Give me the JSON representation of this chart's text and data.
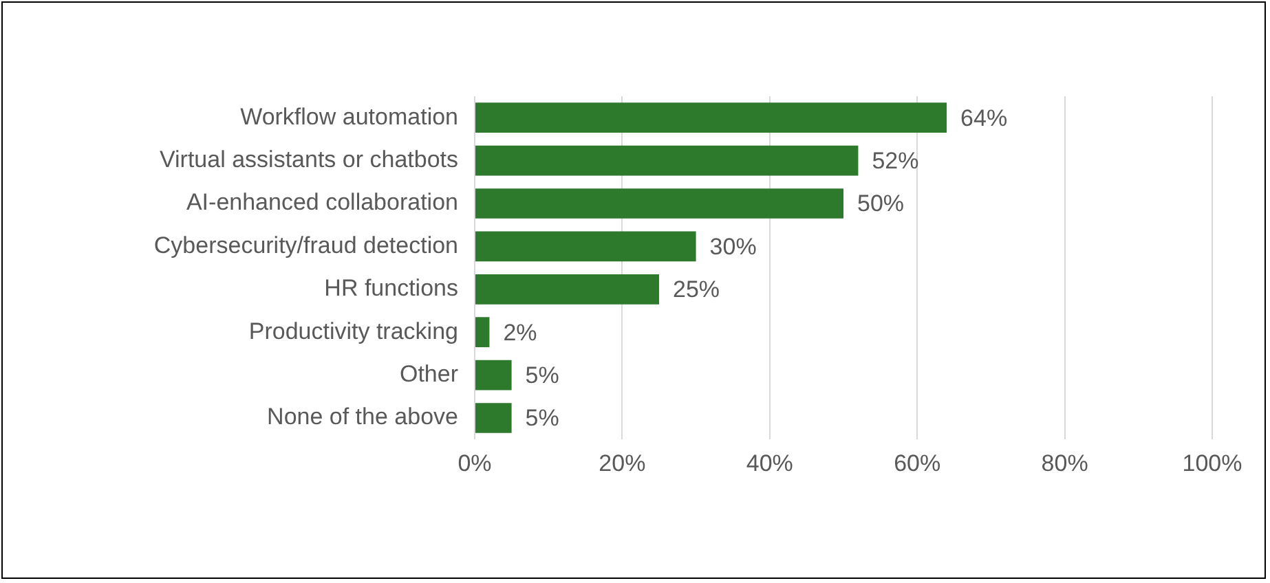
{
  "chart_data": {
    "type": "bar",
    "orientation": "horizontal",
    "categories": [
      "Workflow automation",
      "Virtual assistants or chatbots",
      "AI-enhanced collaboration",
      "Cybersecurity/fraud detection",
      "HR functions",
      "Productivity tracking",
      "Other",
      "None of the above"
    ],
    "values": [
      64,
      52,
      50,
      30,
      25,
      2,
      5,
      5
    ],
    "value_labels": [
      "64%",
      "52%",
      "50%",
      "30%",
      "25%",
      "2%",
      "5%",
      "5%"
    ],
    "color": "#2d7a2d",
    "xlim": [
      0,
      100
    ],
    "xticks": [
      {
        "value": 0,
        "label": "0%"
      },
      {
        "value": 20,
        "label": "20%"
      },
      {
        "value": 40,
        "label": "40%"
      },
      {
        "value": 60,
        "label": "60%"
      },
      {
        "value": 80,
        "label": "80%"
      },
      {
        "value": 100,
        "label": "100%"
      }
    ],
    "grid": "x",
    "legend": false
  }
}
